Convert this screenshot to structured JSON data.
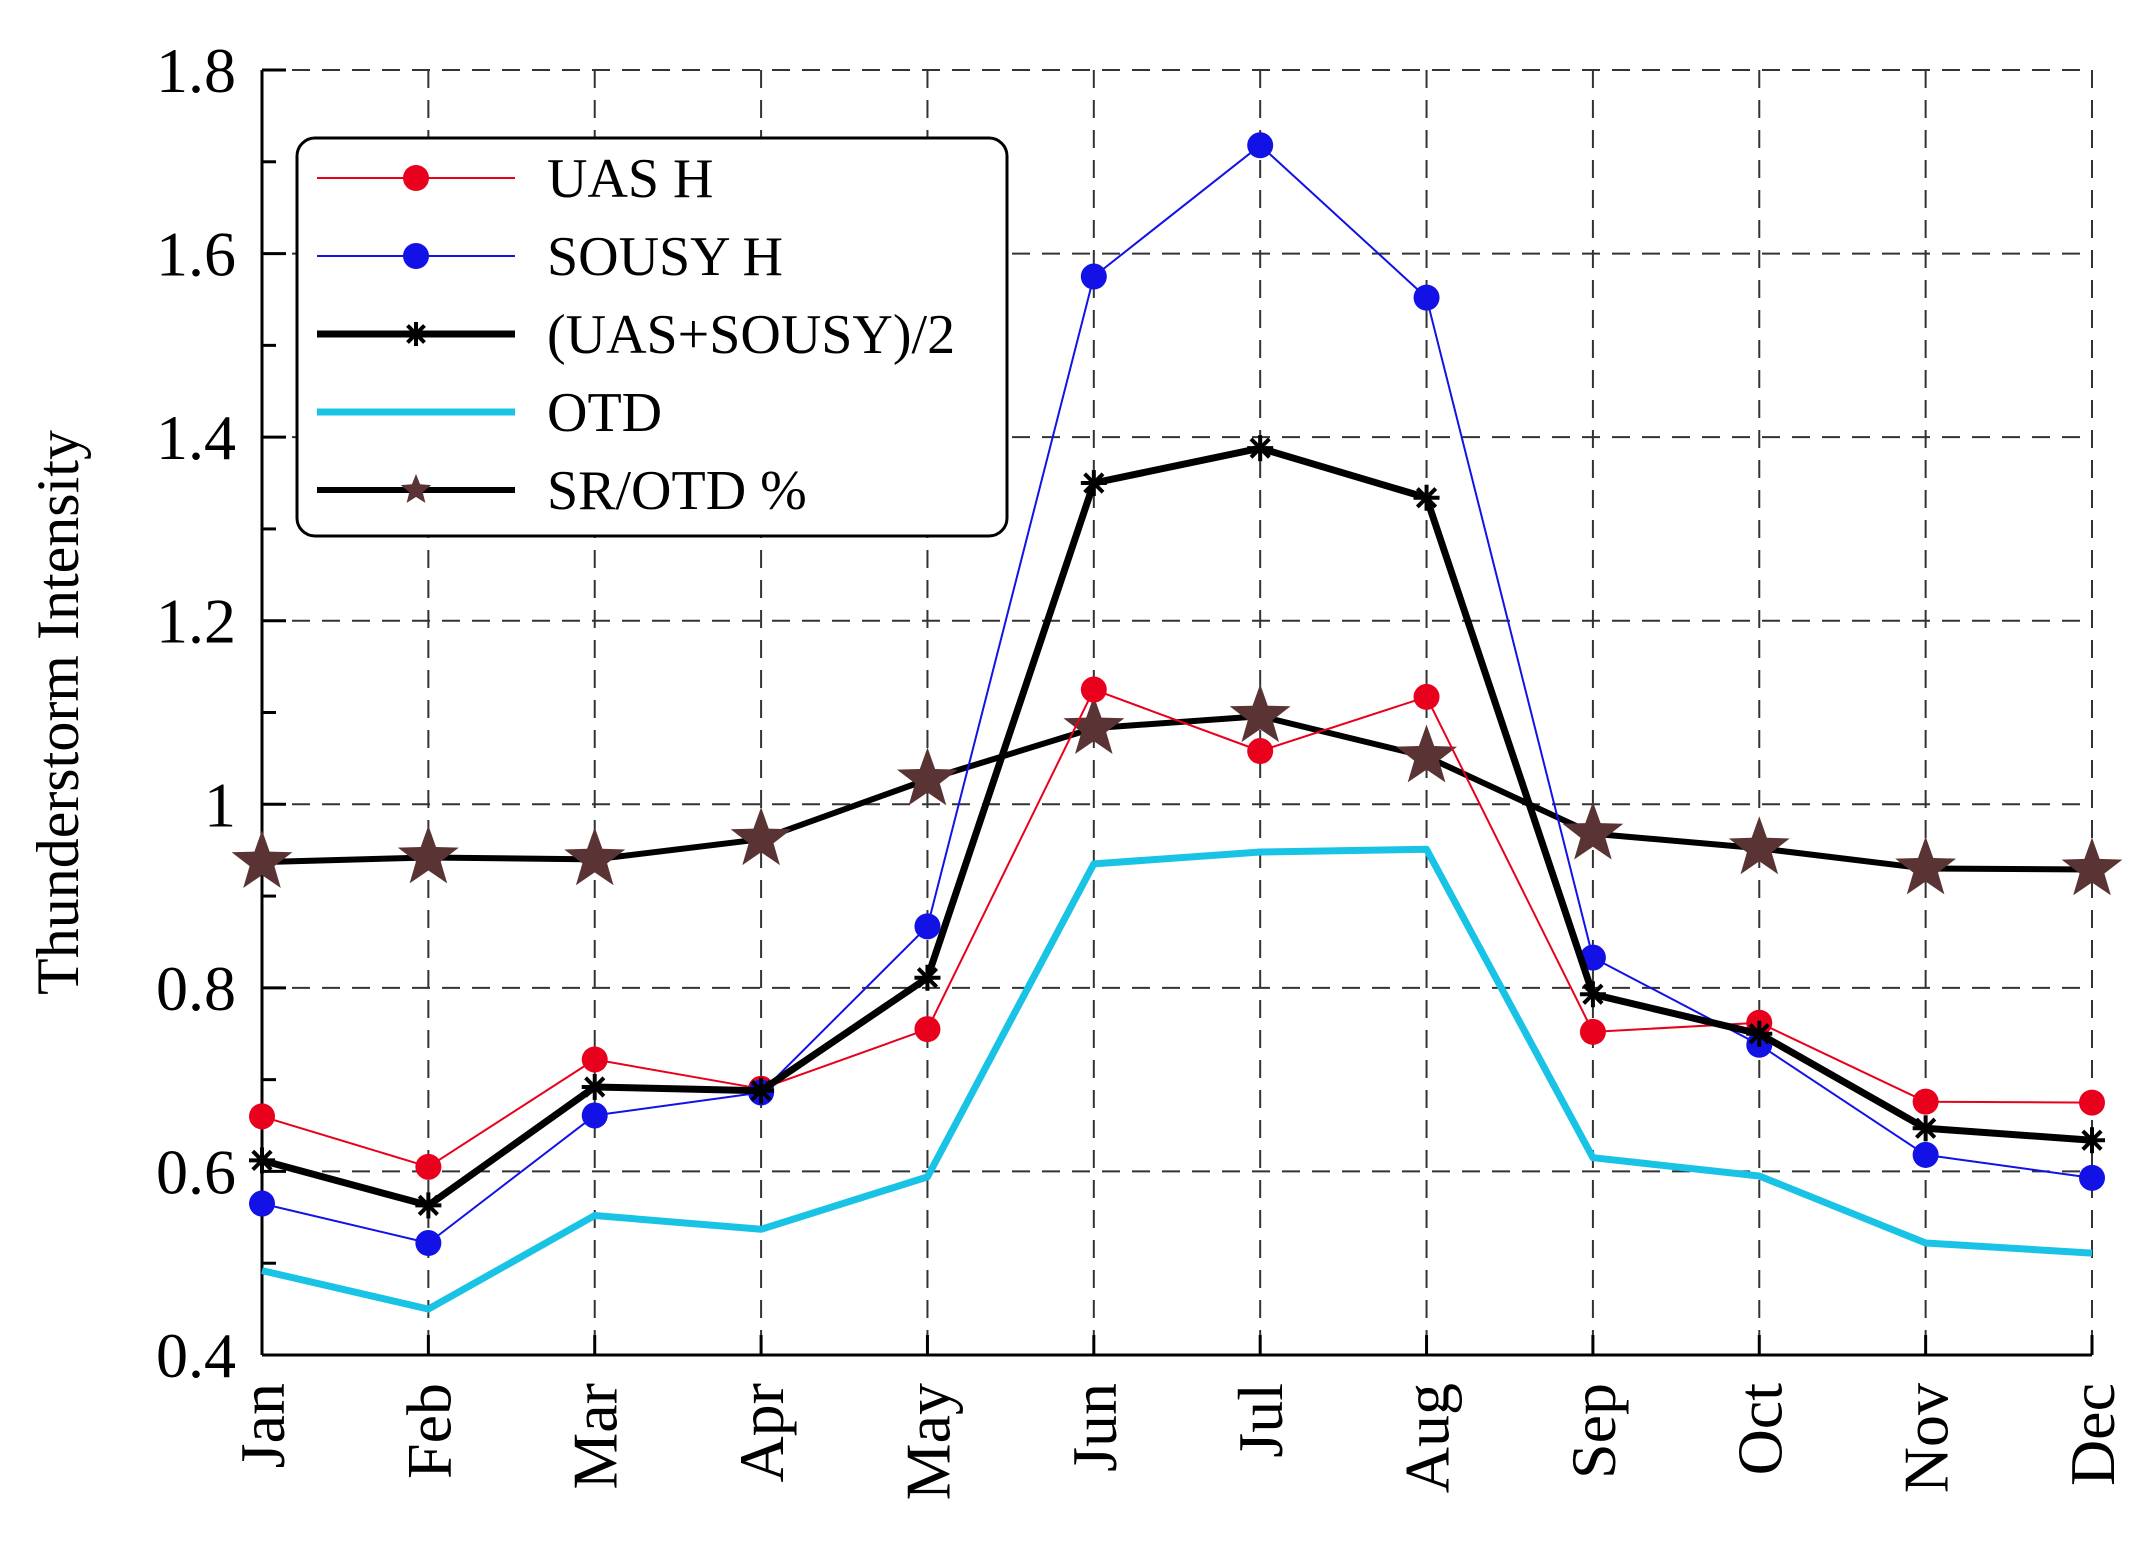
{
  "chart_data": {
    "type": "line",
    "title": "",
    "xlabel": "",
    "ylabel": "Thunderstorm Intensity",
    "ylim": [
      0.4,
      1.8
    ],
    "yticks": [
      {
        "value": 0.4,
        "label": "0.4"
      },
      {
        "value": 0.6,
        "label": "0.6"
      },
      {
        "value": 0.8,
        "label": "0.8"
      },
      {
        "value": 1.0,
        "label": "1"
      },
      {
        "value": 1.2,
        "label": "1.2"
      },
      {
        "value": 1.4,
        "label": "1.4"
      },
      {
        "value": 1.6,
        "label": "1.6"
      },
      {
        "value": 1.8,
        "label": "1.8"
      }
    ],
    "categories": [
      "Jan",
      "Feb",
      "Mar",
      "Apr",
      "May",
      "Jun",
      "Jul",
      "Aug",
      "Sep",
      "Oct",
      "Nov",
      "Dec"
    ],
    "grid": true,
    "legend_position": "top-left",
    "series": [
      {
        "name": "UAS H",
        "color": "#e8001c",
        "marker": "circle",
        "values": [
          0.66,
          0.605,
          0.722,
          0.69,
          0.755,
          1.125,
          1.058,
          1.117,
          0.752,
          0.762,
          0.676,
          0.675
        ]
      },
      {
        "name": "SOUSY H",
        "color": "#1212e6",
        "marker": "circle",
        "values": [
          0.565,
          0.522,
          0.661,
          0.686,
          0.867,
          1.575,
          1.718,
          1.552,
          0.833,
          0.738,
          0.618,
          0.593
        ]
      },
      {
        "name": "(UAS+SOUSY)/2",
        "color": "#000000",
        "marker": "asterisk",
        "values": [
          0.612,
          0.563,
          0.692,
          0.688,
          0.811,
          1.35,
          1.388,
          1.334,
          0.793,
          0.75,
          0.647,
          0.634
        ]
      },
      {
        "name": "OTD",
        "color": "#19c3e6",
        "marker": "none",
        "values": [
          0.492,
          0.45,
          0.552,
          0.537,
          0.594,
          0.935,
          0.948,
          0.951,
          0.615,
          0.595,
          0.522,
          0.511
        ]
      },
      {
        "name": "SR/OTD %",
        "color": "#000000",
        "marker": "star",
        "marker_color": "#5a3434",
        "values": [
          0.937,
          0.942,
          0.94,
          0.962,
          1.027,
          1.083,
          1.096,
          1.052,
          0.968,
          0.952,
          0.93,
          0.929
        ]
      }
    ]
  }
}
